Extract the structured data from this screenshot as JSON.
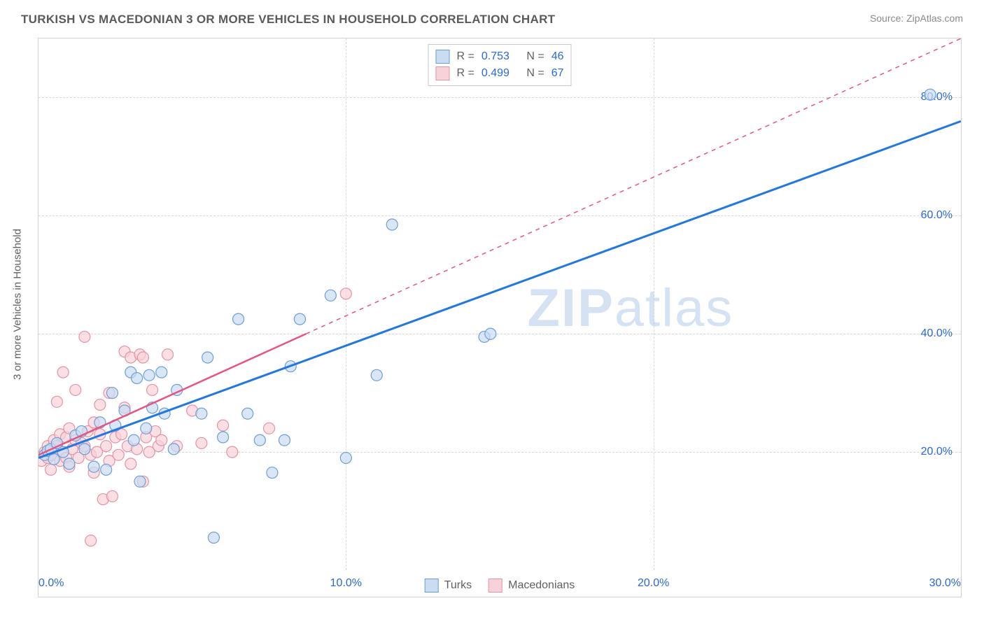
{
  "header": {
    "title": "TURKISH VS MACEDONIAN 3 OR MORE VEHICLES IN HOUSEHOLD CORRELATION CHART",
    "source": "Source: ZipAtlas.com"
  },
  "watermark_pre": "ZIP",
  "watermark_post": "atlas",
  "chart": {
    "type": "scatter-correlation",
    "y_axis_label": "3 or more Vehicles in Household",
    "xlim": [
      0,
      30
    ],
    "ylim": [
      0,
      90
    ],
    "x_ticks": [
      0,
      10,
      20,
      30
    ],
    "x_tick_labels": [
      "0.0%",
      "10.0%",
      "20.0%",
      "30.0%"
    ],
    "y_ticks": [
      20,
      40,
      60,
      80
    ],
    "y_tick_labels": [
      "20.0%",
      "40.0%",
      "60.0%",
      "80.0%"
    ],
    "grid_color": "#d8d8d8",
    "background_color": "#ffffff",
    "series": {
      "turks": {
        "label": "Turks",
        "fill": "#c9dcf2",
        "stroke": "#6b9ed8",
        "line_color": "#2378e0",
        "line_dash": "solid",
        "r_label": "R =",
        "r_value": "0.753",
        "n_label": "N =",
        "n_value": "46",
        "trend": {
          "x1": 0,
          "y1": 19,
          "x2": 30,
          "y2": 76
        },
        "points": [
          [
            0.2,
            19.5
          ],
          [
            0.3,
            20.2
          ],
          [
            0.5,
            18.8
          ],
          [
            0.4,
            20.5
          ],
          [
            0.8,
            20.0
          ],
          [
            0.6,
            21.5
          ],
          [
            1.0,
            18.0
          ],
          [
            1.2,
            22.8
          ],
          [
            1.5,
            20.5
          ],
          [
            1.4,
            23.5
          ],
          [
            1.8,
            17.5
          ],
          [
            2.0,
            25.0
          ],
          [
            2.2,
            17.0
          ],
          [
            2.4,
            30.0
          ],
          [
            2.5,
            24.5
          ],
          [
            2.8,
            27.0
          ],
          [
            3.0,
            33.5
          ],
          [
            3.1,
            22.0
          ],
          [
            3.2,
            32.5
          ],
          [
            3.3,
            15.0
          ],
          [
            3.5,
            24.0
          ],
          [
            3.6,
            33.0
          ],
          [
            3.7,
            27.5
          ],
          [
            4.0,
            33.5
          ],
          [
            4.1,
            26.5
          ],
          [
            4.4,
            20.5
          ],
          [
            4.5,
            30.5
          ],
          [
            5.3,
            26.5
          ],
          [
            5.5,
            36.0
          ],
          [
            5.7,
            5.5
          ],
          [
            6.0,
            22.5
          ],
          [
            6.5,
            42.5
          ],
          [
            6.8,
            26.5
          ],
          [
            7.2,
            22.0
          ],
          [
            7.6,
            16.5
          ],
          [
            8.0,
            22.0
          ],
          [
            8.2,
            34.5
          ],
          [
            8.5,
            42.5
          ],
          [
            9.5,
            46.5
          ],
          [
            10.0,
            19.0
          ],
          [
            11.0,
            33.0
          ],
          [
            11.5,
            58.5
          ],
          [
            14.5,
            39.5
          ],
          [
            14.7,
            40.0
          ],
          [
            29.0,
            80.5
          ]
        ]
      },
      "macedonians": {
        "label": "Macedonians",
        "fill": "#f8d2d9",
        "stroke": "#e593a4",
        "line_color": "#e75480",
        "line_dash": "dashed",
        "r_label": "R =",
        "r_value": "0.499",
        "n_label": "N =",
        "n_value": "67",
        "trend_solid": {
          "x1": 0,
          "y1": 19.5,
          "x2": 8.7,
          "y2": 40
        },
        "trend_dashed": {
          "x1": 8.7,
          "y1": 40,
          "x2": 30,
          "y2": 90
        },
        "points": [
          [
            0.1,
            18.5
          ],
          [
            0.2,
            20.0
          ],
          [
            0.3,
            19.0
          ],
          [
            0.3,
            21.0
          ],
          [
            0.4,
            17.0
          ],
          [
            0.4,
            19.5
          ],
          [
            0.5,
            22.0
          ],
          [
            0.5,
            20.5
          ],
          [
            0.6,
            21.0
          ],
          [
            0.6,
            28.5
          ],
          [
            0.7,
            18.5
          ],
          [
            0.7,
            23.0
          ],
          [
            0.8,
            20.0
          ],
          [
            0.8,
            33.5
          ],
          [
            0.9,
            19.0
          ],
          [
            0.9,
            22.5
          ],
          [
            1.0,
            24.0
          ],
          [
            1.0,
            17.5
          ],
          [
            1.1,
            20.5
          ],
          [
            1.2,
            22.0
          ],
          [
            1.2,
            30.5
          ],
          [
            1.3,
            19.0
          ],
          [
            1.4,
            21.5
          ],
          [
            1.5,
            39.5
          ],
          [
            1.5,
            21.0
          ],
          [
            1.6,
            23.5
          ],
          [
            1.7,
            19.5
          ],
          [
            1.7,
            5.0
          ],
          [
            1.8,
            25.0
          ],
          [
            1.8,
            16.5
          ],
          [
            1.9,
            20.0
          ],
          [
            2.0,
            23.0
          ],
          [
            2.0,
            28.0
          ],
          [
            2.1,
            12.0
          ],
          [
            2.2,
            21.0
          ],
          [
            2.3,
            18.5
          ],
          [
            2.3,
            30.0
          ],
          [
            2.4,
            12.5
          ],
          [
            2.5,
            22.5
          ],
          [
            2.6,
            19.5
          ],
          [
            2.7,
            23.0
          ],
          [
            2.8,
            27.5
          ],
          [
            2.8,
            37.0
          ],
          [
            2.9,
            21.0
          ],
          [
            3.0,
            18.0
          ],
          [
            3.0,
            36.0
          ],
          [
            3.2,
            20.5
          ],
          [
            3.3,
            36.5
          ],
          [
            3.4,
            15.0
          ],
          [
            3.4,
            36.0
          ],
          [
            3.5,
            22.5
          ],
          [
            3.6,
            20.0
          ],
          [
            3.7,
            30.5
          ],
          [
            3.8,
            23.5
          ],
          [
            3.9,
            21.0
          ],
          [
            4.0,
            22.0
          ],
          [
            4.2,
            36.5
          ],
          [
            4.5,
            21.0
          ],
          [
            5.0,
            27.0
          ],
          [
            5.3,
            21.5
          ],
          [
            6.0,
            24.5
          ],
          [
            6.3,
            20.0
          ],
          [
            7.5,
            24.0
          ],
          [
            10.0,
            46.8
          ]
        ]
      }
    }
  }
}
